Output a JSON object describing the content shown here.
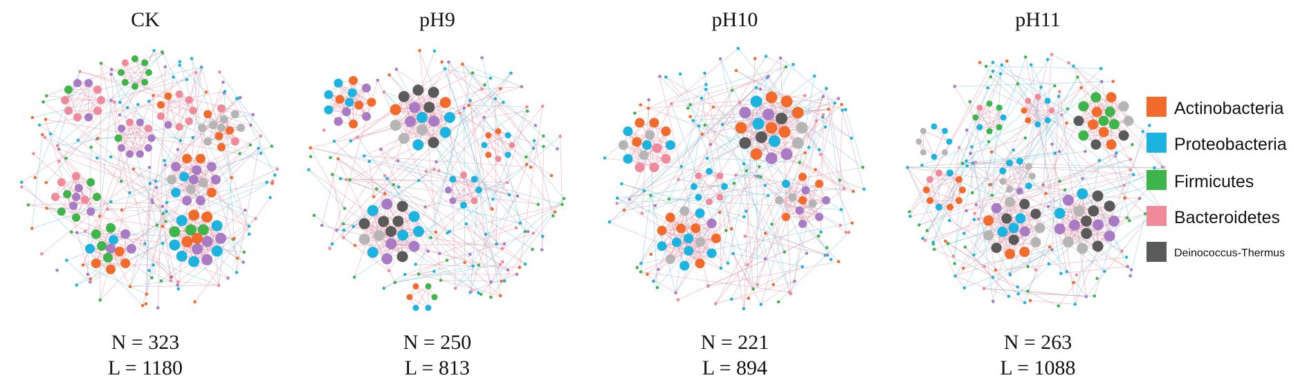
{
  "panels": [
    {
      "id": "ck",
      "title": "CK",
      "n_label": "N = 323",
      "l_label": "L = 1180"
    },
    {
      "id": "ph9",
      "title": "pH9",
      "n_label": "N = 250",
      "l_label": "L = 813"
    },
    {
      "id": "ph10",
      "title": "pH10",
      "n_label": "N = 221",
      "l_label": "L = 894"
    },
    {
      "id": "ph11",
      "title": "pH11",
      "n_label": "N = 263",
      "l_label": "L = 1088"
    }
  ],
  "legend": [
    {
      "label": "Actinobacteria",
      "color": "#f26b2a"
    },
    {
      "label": "Proteobacteria",
      "color": "#1bb4e0"
    },
    {
      "label": "Firmicutes",
      "color": "#3db54a"
    },
    {
      "label": "Bacteroidetes",
      "color": "#f08a9a"
    },
    {
      "label": "Deinococcus-Thermus",
      "color": "#5a5a5a"
    }
  ],
  "extra_node_colors": {
    "purple": "#a87bc4",
    "gray": "#b5b5b5"
  },
  "edge_color": "#e89aab",
  "edge_color_alt": "#7cc9e0"
}
